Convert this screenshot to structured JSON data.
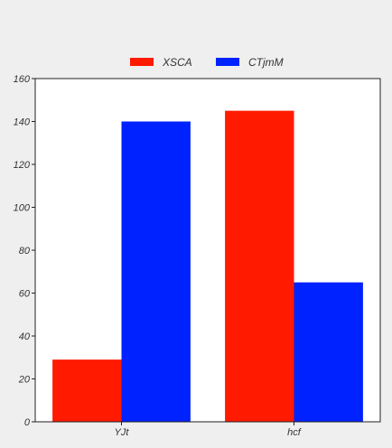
{
  "chart_data": {
    "type": "bar",
    "categories": [
      "YJt",
      "hcf"
    ],
    "series": [
      {
        "name": "XSCA",
        "color": "#ff1a00",
        "values": [
          29,
          145
        ]
      },
      {
        "name": "CTjmM",
        "color": "#0022ff",
        "values": [
          140,
          65
        ]
      }
    ],
    "ylim": [
      0,
      160
    ],
    "yticks": [
      0,
      20,
      40,
      60,
      80,
      100,
      120,
      140,
      160
    ],
    "legend_position": "top-center",
    "grid": false
  }
}
